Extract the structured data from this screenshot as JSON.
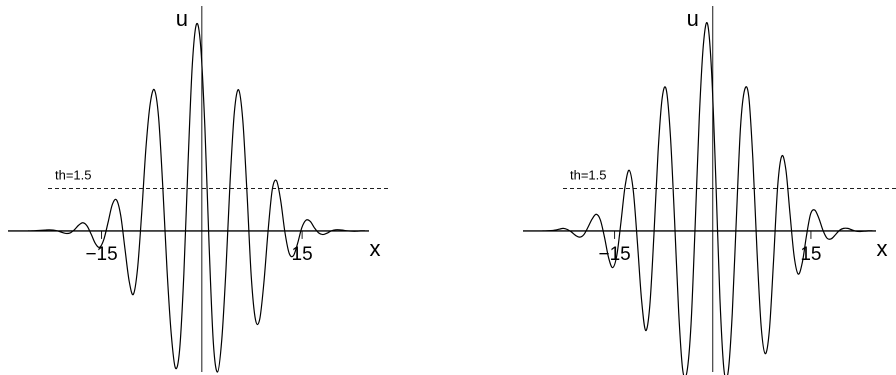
{
  "chart_data": [
    {
      "type": "line",
      "xlabel": "x",
      "ylabel": "u",
      "xlim": [
        -29,
        28
      ],
      "ylim": [
        -5.0,
        7.9
      ],
      "xticks": [
        -15,
        15
      ],
      "xtick_labels": [
        "−15",
        "15"
      ],
      "threshold": {
        "value": 1.5,
        "label": "th=1.5"
      },
      "series": [
        {
          "k": 1.0,
          "x": [
            -26,
            -25.37,
            -24.74,
            -24.11,
            -23.48,
            -22.85,
            -22.22,
            -21.59,
            -20.96,
            -20.33,
            -19.7,
            -19.07,
            -18.44,
            -17.81,
            -17.18,
            -16.55,
            -15.92,
            -15.29,
            -14.66,
            -14.03,
            -13.4,
            -12.77,
            -12.14,
            -11.51,
            -10.88,
            -10.25,
            -9.62,
            -8.99,
            -8.36,
            -7.73,
            -7.1,
            -6.47,
            -5.84,
            -5.21,
            -4.58,
            -3.95,
            -3.32,
            -2.69,
            -2.06,
            -1.43,
            -0.8,
            -0.17,
            0.46,
            1.09,
            1.72,
            2.35,
            2.98,
            3.61,
            4.24,
            4.87,
            5.5,
            6.13,
            6.76,
            7.39,
            8.02,
            8.65,
            9.28,
            9.91,
            10.54,
            11.17,
            11.8,
            12.43,
            13.06,
            13.69,
            14.32,
            14.95,
            15.58,
            16.21,
            16.84,
            17.47,
            18.1,
            18.73,
            19.36,
            19.99,
            20.62,
            21.25,
            21.88,
            22.51,
            23.14,
            23.77,
            24.4
          ],
          "y": [
            0.0,
            0.0,
            0.01,
            0.02,
            0.03,
            0.04,
            0.03,
            0.0,
            -0.05,
            -0.09,
            -0.07,
            0.04,
            0.2,
            0.29,
            0.18,
            -0.12,
            -0.45,
            -0.58,
            -0.3,
            0.3,
            0.93,
            1.1,
            0.55,
            -0.62,
            -1.77,
            -2.25,
            -1.34,
            0.66,
            2.95,
            4.5,
            5.0,
            4.02,
            1.55,
            -1.38,
            -3.65,
            -4.86,
            -4.2,
            -1.52,
            2.43,
            5.87,
            7.33,
            6.53,
            3.64,
            -0.54,
            -3.96,
            -5.0,
            -3.86,
            -1.36,
            1.82,
            4.22,
            5.0,
            3.91,
            1.33,
            -1.61,
            -3.14,
            -3.14,
            -1.84,
            0.0,
            1.47,
            1.78,
            1.07,
            -0.05,
            -0.79,
            -0.88,
            -0.45,
            0.11,
            0.38,
            0.34,
            0.11,
            -0.07,
            -0.13,
            -0.08,
            0.0,
            0.04,
            0.04,
            0.02,
            0.0,
            -0.01,
            -0.01,
            0.0,
            0.0
          ]
        },
        {
          "k": 1.0,
          "x": [
            -26,
            -25.37,
            -24.74,
            -24.11,
            -23.48,
            -22.85,
            -22.22,
            -21.59,
            -20.96,
            -20.33,
            -19.7,
            -19.07,
            -18.44,
            -17.81,
            -17.18,
            -16.55,
            -15.92,
            -15.29,
            -14.66,
            -14.03,
            -13.4,
            -12.77,
            -12.14,
            -11.51,
            -10.88,
            -10.25,
            -9.62,
            -8.99,
            -8.36,
            -7.73,
            -7.1,
            -6.47,
            -5.84,
            -5.21,
            -4.58,
            -3.95,
            -3.32,
            -2.69,
            -2.06,
            -1.43,
            -0.8,
            -0.17,
            0.46,
            1.09,
            1.72,
            2.35,
            2.98,
            3.61,
            4.24,
            4.87,
            5.5,
            6.13,
            6.76,
            7.39,
            8.02,
            8.65,
            9.28,
            9.91,
            10.54,
            11.17,
            11.8,
            12.43,
            13.06,
            13.69,
            14.32,
            14.95,
            15.58,
            16.21,
            16.84,
            17.47,
            18.1,
            18.73,
            19.36,
            19.99,
            20.62,
            21.25,
            21.88,
            22.51,
            23.14,
            23.77,
            24.4
          ],
          "y": [
            0.0,
            0.0,
            0.01,
            0.03,
            0.06,
            0.09,
            0.05,
            -0.04,
            -0.16,
            -0.22,
            -0.13,
            0.13,
            0.42,
            0.59,
            0.39,
            -0.22,
            -0.95,
            -1.3,
            -0.86,
            0.31,
            1.58,
            2.15,
            1.41,
            -0.43,
            -2.45,
            -3.53,
            -2.64,
            -0.13,
            2.8,
            4.71,
            5.0,
            3.36,
            0.39,
            -2.88,
            -4.95,
            -5.0,
            -3.3,
            0.2,
            4.03,
            6.61,
            7.34,
            5.59,
            1.87,
            -2.38,
            -4.94,
            -5.0,
            -2.92,
            0.47,
            3.68,
            5.0,
            4.76,
            2.53,
            -0.72,
            -3.37,
            -4.35,
            -3.52,
            -1.09,
            1.56,
            2.65,
            2.17,
            0.61,
            -0.89,
            -1.53,
            -1.11,
            -0.17,
            0.6,
            0.74,
            0.45,
            0.02,
            -0.26,
            -0.28,
            -0.14,
            0.02,
            0.09,
            0.09,
            0.04,
            -0.01,
            -0.02,
            -0.01,
            0.0,
            0.0
          ]
        }
      ]
    }
  ]
}
